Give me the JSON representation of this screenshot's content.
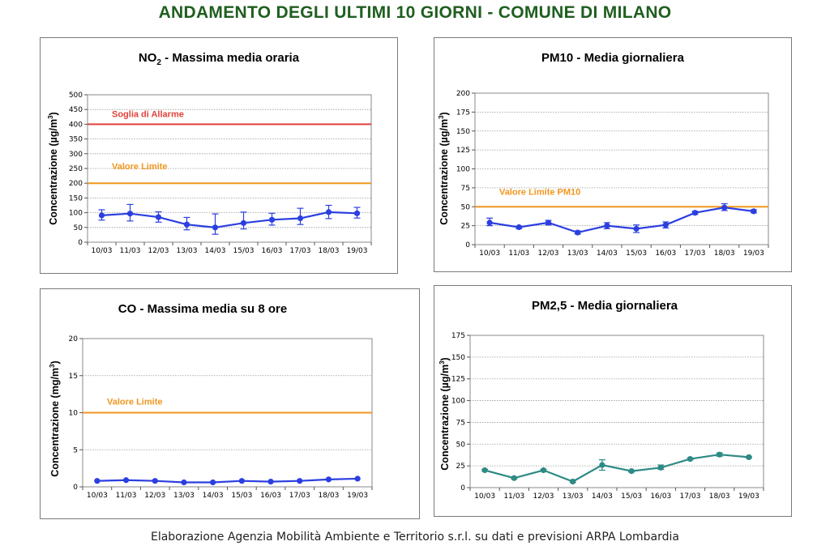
{
  "page": {
    "title": "ANDAMENTO DEGLI ULTIMI 10 GIORNI - COMUNE DI MILANO",
    "footer": "Elaborazione Agenzia Mobilità Ambiente e Territorio s.r.l. su dati e previsioni ARPA Lombardia"
  },
  "chart_data": [
    {
      "type": "line",
      "title_main": "NO",
      "title_sub": "2",
      "title_rest": " - Massima media oraria",
      "ylabel_main": "Concentrazione (µg/m",
      "ylabel_sup": "3",
      "ylabel_end": ")",
      "categories": [
        "10/03",
        "11/03",
        "12/03",
        "13/03",
        "14/03",
        "15/03",
        "16/03",
        "17/03",
        "18/03",
        "19/03"
      ],
      "ylim": [
        0,
        500
      ],
      "yticks": [
        0,
        50,
        100,
        150,
        200,
        250,
        300,
        350,
        400,
        450,
        500
      ],
      "series": [
        {
          "values": [
            91,
            97,
            85,
            60,
            50,
            65,
            76,
            81,
            102,
            98
          ],
          "err_low": [
            75,
            72,
            68,
            42,
            27,
            45,
            58,
            60,
            80,
            82
          ],
          "err_high": [
            110,
            128,
            103,
            84,
            96,
            102,
            98,
            115,
            125,
            118
          ]
        }
      ],
      "series_color": "#2b3fe0",
      "reference_lines": [
        {
          "label": "Soglia di Allarme",
          "value": 400,
          "color": "#e0423a"
        },
        {
          "label": "Valore Limite",
          "value": 200,
          "color": "#f0961e"
        }
      ],
      "grid": true
    },
    {
      "type": "line",
      "title_main": "PM10",
      "title_sub": "",
      "title_rest": " - Media giornaliera",
      "ylabel_main": "Concentrazione (µg/m",
      "ylabel_sup": "3",
      "ylabel_end": ")",
      "categories": [
        "10/03",
        "11/03",
        "12/03",
        "13/03",
        "14/03",
        "15/03",
        "16/03",
        "17/03",
        "18/03",
        "19/03"
      ],
      "ylim": [
        0,
        200
      ],
      "yticks": [
        0,
        25,
        50,
        75,
        100,
        125,
        150,
        175,
        200
      ],
      "series": [
        {
          "values": [
            29,
            23,
            29,
            16,
            25,
            21,
            26,
            42,
            49,
            44
          ],
          "err_low": [
            25,
            21,
            26,
            14,
            21,
            16,
            22,
            40,
            45,
            42
          ],
          "err_high": [
            35,
            24,
            32,
            18,
            29,
            26,
            30,
            44,
            54,
            46
          ]
        }
      ],
      "series_color": "#2b3fe0",
      "reference_lines": [
        {
          "label": "Valore Limite PM10",
          "value": 50,
          "color": "#f0961e"
        }
      ],
      "grid": true
    },
    {
      "type": "line",
      "title_main": "CO",
      "title_sub": "",
      "title_rest": " - Massima media su 8 ore",
      "ylabel_main": "Concentrazione (mg/m",
      "ylabel_sup": "3",
      "ylabel_end": ")",
      "categories": [
        "10/03",
        "11/03",
        "12/03",
        "13/03",
        "14/03",
        "15/03",
        "16/03",
        "17/03",
        "18/03",
        "19/03"
      ],
      "ylim": [
        0,
        20
      ],
      "yticks": [
        0,
        5,
        10,
        15,
        20
      ],
      "series": [
        {
          "values": [
            0.8,
            0.9,
            0.8,
            0.6,
            0.6,
            0.8,
            0.7,
            0.8,
            1.0,
            1.1
          ]
        }
      ],
      "series_color": "#2b3fe0",
      "reference_lines": [
        {
          "label": "Valore Limite",
          "value": 10,
          "color": "#f0961e"
        }
      ],
      "grid": true
    },
    {
      "type": "line",
      "title_main": "PM2,5",
      "title_sub": "",
      "title_rest": " - Media giornaliera",
      "ylabel_main": "Concentrazione (µg/m",
      "ylabel_sup": "3",
      "ylabel_end": ")",
      "categories": [
        "10/03",
        "11/03",
        "12/03",
        "13/03",
        "14/03",
        "15/03",
        "16/03",
        "17/03",
        "18/03",
        "19/03"
      ],
      "ylim": [
        0,
        175
      ],
      "yticks": [
        0,
        25,
        50,
        75,
        100,
        125,
        150,
        175
      ],
      "series": [
        {
          "values": [
            20,
            11,
            20,
            7,
            26,
            19,
            23,
            33,
            38,
            35
          ],
          "err_low": [
            19,
            10,
            19,
            6,
            20,
            18,
            21,
            32,
            36,
            34
          ],
          "err_high": [
            21,
            12,
            21,
            8,
            32,
            20,
            26,
            34,
            40,
            36
          ]
        }
      ],
      "series_color": "#2e8a85",
      "reference_lines": [],
      "grid": true
    }
  ]
}
